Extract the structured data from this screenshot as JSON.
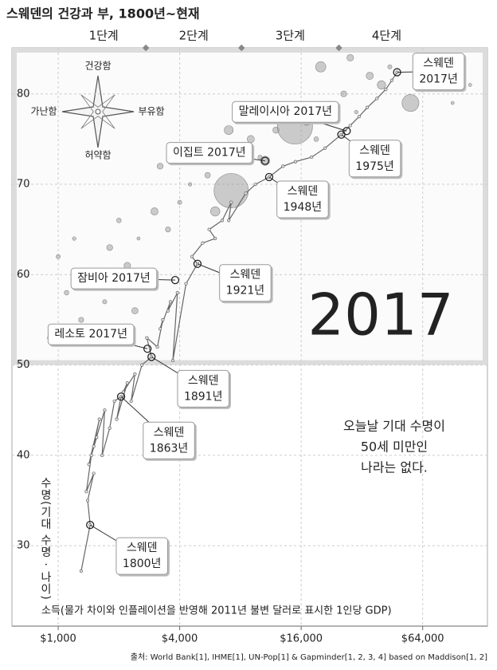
{
  "chart_data": {
    "type": "line",
    "title": "스웨덴의 건강과 부, 1800년~현재",
    "x": [
      1300,
      1440,
      1400,
      1500,
      1380,
      1460,
      1550,
      1420,
      1600,
      1500,
      1700,
      1650,
      1800,
      1900,
      2050,
      1950,
      2200,
      2100,
      2400,
      2300,
      2600,
      2900,
      2750,
      3100,
      3300,
      3200,
      3600,
      3500,
      3900,
      3700,
      4300,
      4900,
      4600,
      5200,
      6000,
      5600,
      6500,
      7200,
      7000,
      8500,
      9500,
      11100,
      13000,
      15000,
      18000,
      21000,
      25300,
      28000,
      31000,
      34000,
      38000,
      42000,
      45000,
      47800
    ],
    "values": [
      27.2,
      32.3,
      35,
      38,
      36,
      40,
      42,
      39,
      44,
      41,
      45,
      40,
      43,
      46,
      46.5,
      44,
      48,
      47,
      49,
      46,
      50,
      50.9,
      53,
      52,
      55,
      54,
      57,
      56,
      58,
      50.5,
      59,
      61.2,
      62,
      63.5,
      64,
      65,
      66,
      68,
      66,
      69,
      70,
      70.8,
      72,
      72.5,
      73,
      74,
      75.5,
      76.5,
      77.5,
      78.5,
      79.5,
      80.5,
      81.5,
      82.4
    ],
    "color": "#666666",
    "xlim": [
      590,
      134000
    ],
    "log_x": true,
    "xticks": [
      {
        "value": 1000,
        "label": "$1,000"
      },
      {
        "value": 4000,
        "label": "$4,000"
      },
      {
        "value": 16000,
        "label": "$16,000"
      },
      {
        "value": 64000,
        "label": "$64,000"
      }
    ],
    "ylim": [
      21.1,
      85.1
    ],
    "yticks": [
      30,
      40,
      50,
      60,
      70,
      80
    ],
    "grid": true,
    "highlight_above": 50,
    "x_label": "소득(물가 차이와 인플레이션을 반영해 2011년 불변 달러로 표시한 1인당 GDP)",
    "y_label": "수명(기대 수명 · 나이)",
    "stages": [
      "1단계",
      "2단계",
      "3단계",
      "4단계"
    ],
    "stage_boundaries": [
      2720,
      8100,
      24600
    ],
    "compass": {
      "up": "건강함",
      "left": "가난함",
      "right": "부유함",
      "down": "허약함"
    },
    "year_label": "2017",
    "note": [
      "오늘날 기대 수명이",
      "50세 미만인",
      "나라는 없다."
    ],
    "annotations": [
      {
        "lines": [
          "스웨덴",
          "2017년"
        ],
        "x": 47800,
        "y": 82.4
      },
      {
        "lines": [
          "말레이시아 2017년"
        ],
        "x": 26900,
        "y": 75.9
      },
      {
        "lines": [
          "스웨덴",
          "1975년"
        ],
        "x": 25300,
        "y": 75.5
      },
      {
        "lines": [
          "이집트 2017년"
        ],
        "x": 10600,
        "y": 72.6
      },
      {
        "lines": [
          "스웨덴",
          "1948년"
        ],
        "x": 11100,
        "y": 70.8
      },
      {
        "lines": [
          "잠비아 2017년"
        ],
        "x": 3800,
        "y": 59.4
      },
      {
        "lines": [
          "스웨덴",
          "1921년"
        ],
        "x": 4900,
        "y": 61.2
      },
      {
        "lines": [
          "레소토 2017년"
        ],
        "x": 2770,
        "y": 51.8
      },
      {
        "lines": [
          "스웨덴",
          "1891년"
        ],
        "x": 2900,
        "y": 50.9
      },
      {
        "lines": [
          "스웨덴",
          "1863년"
        ],
        "x": 2050,
        "y": 46.5
      },
      {
        "lines": [
          "스웨덴",
          "1800년"
        ],
        "x": 1440,
        "y": 32.3
      }
    ],
    "bubbles": {
      "x": [
        1000,
        1200,
        1500,
        1800,
        2000,
        2200,
        2500,
        3000,
        3500,
        4000,
        4500,
        5500,
        6000,
        7200,
        8000,
        9000,
        10000,
        12000,
        14900,
        17000,
        19000,
        22000,
        26000,
        30000,
        35000,
        40000,
        44000,
        55700,
        60000,
        75000,
        90000,
        110000,
        1300,
        1700,
        2400,
        900,
        1100,
        3200,
        5000,
        7000,
        20000,
        28000,
        10600
      ],
      "y": [
        62,
        64,
        60,
        63,
        66,
        61,
        64,
        67,
        65,
        68,
        70,
        71,
        67,
        69.3,
        74,
        75,
        73,
        76,
        76.4,
        77,
        75,
        79,
        80,
        78,
        82,
        81,
        83,
        79,
        82,
        82,
        79,
        81,
        55,
        57,
        56,
        53,
        58,
        72,
        74,
        76,
        83,
        84,
        72.6
      ],
      "size": [
        20,
        15,
        30,
        40,
        25,
        50,
        10,
        60,
        30,
        20,
        15,
        35,
        100,
        1340,
        30,
        60,
        20,
        45,
        1400,
        80,
        25,
        10,
        40,
        15,
        60,
        80,
        20,
        325,
        15,
        30,
        8,
        5,
        30,
        20,
        45,
        10,
        25,
        40,
        70,
        90,
        120,
        50,
        97
      ]
    },
    "source": "출처: World Bank[1], IHME[1], UN-Pop[1] & Gapminder[1, 2, 3, 4] based on Maddison[1, 2]"
  }
}
